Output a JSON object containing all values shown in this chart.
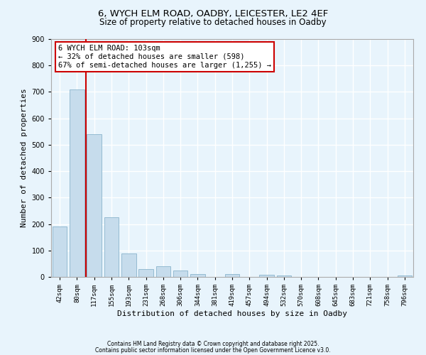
{
  "title_line1": "6, WYCH ELM ROAD, OADBY, LEICESTER, LE2 4EF",
  "title_line2": "Size of property relative to detached houses in Oadby",
  "xlabel": "Distribution of detached houses by size in Oadby",
  "ylabel": "Number of detached properties",
  "categories": [
    "42sqm",
    "80sqm",
    "117sqm",
    "155sqm",
    "193sqm",
    "231sqm",
    "268sqm",
    "306sqm",
    "344sqm",
    "381sqm",
    "419sqm",
    "457sqm",
    "494sqm",
    "532sqm",
    "570sqm",
    "608sqm",
    "645sqm",
    "683sqm",
    "721sqm",
    "758sqm",
    "796sqm"
  ],
  "values": [
    190,
    710,
    540,
    225,
    90,
    30,
    40,
    25,
    12,
    0,
    12,
    0,
    8,
    5,
    0,
    0,
    0,
    0,
    0,
    0,
    5
  ],
  "bar_color": "#c6dcec",
  "bar_edge_color": "#8ab4cc",
  "vline_color": "#cc0000",
  "vline_x_index": 1.5,
  "annotation_line1": "6 WYCH ELM ROAD: 103sqm",
  "annotation_line2": "← 32% of detached houses are smaller (598)",
  "annotation_line3": "67% of semi-detached houses are larger (1,255) →",
  "box_edge_color": "#cc0000",
  "ylim": [
    0,
    900
  ],
  "yticks": [
    0,
    100,
    200,
    300,
    400,
    500,
    600,
    700,
    800,
    900
  ],
  "background_color": "#e8f4fc",
  "grid_color": "#ffffff",
  "footer1": "Contains HM Land Registry data © Crown copyright and database right 2025.",
  "footer2": "Contains public sector information licensed under the Open Government Licence v3.0.",
  "title_fontsize": 9.5,
  "subtitle_fontsize": 8.5,
  "tick_fontsize": 6.5,
  "axis_label_fontsize": 8,
  "annotation_fontsize": 7.5,
  "footer_fontsize": 5.5
}
